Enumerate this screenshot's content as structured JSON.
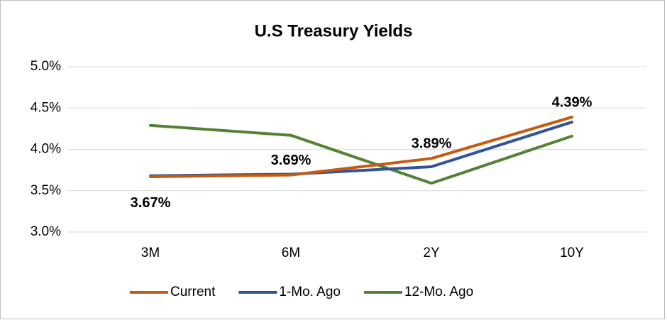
{
  "chart_data": {
    "type": "line",
    "title": "U.S Treasury Yields",
    "categories": [
      "3M",
      "6M",
      "2Y",
      "10Y"
    ],
    "series": [
      {
        "name": "Current",
        "color": "#c55a11",
        "values": [
          3.67,
          3.69,
          3.89,
          4.39
        ],
        "value_labels": [
          "3.67%",
          "3.69%",
          "3.89%",
          "4.39%"
        ]
      },
      {
        "name": "1-Mo. Ago",
        "color": "#2f5597",
        "values": [
          3.68,
          3.7,
          3.79,
          4.33
        ]
      },
      {
        "name": "12-Mo. Ago",
        "color": "#548235",
        "values": [
          4.29,
          4.17,
          3.59,
          4.16
        ]
      }
    ],
    "ylim": [
      3.0,
      5.0
    ],
    "yticks": [
      {
        "value": 3.0,
        "label": "3.0%"
      },
      {
        "value": 3.5,
        "label": "3.5%"
      },
      {
        "value": 4.0,
        "label": "4.0%"
      },
      {
        "value": 4.5,
        "label": "4.5%"
      },
      {
        "value": 5.0,
        "label": "5.0%"
      }
    ],
    "grid": true,
    "legend": "bottom"
  }
}
